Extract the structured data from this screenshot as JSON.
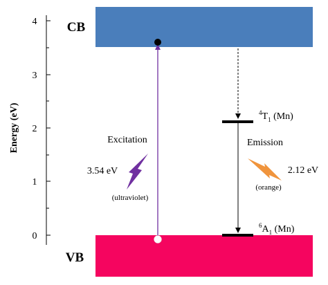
{
  "axis": {
    "ylabel": "Energy (eV)",
    "ticks": [
      "0",
      "1",
      "2",
      "3",
      "4"
    ],
    "ylim": [
      0,
      4.1
    ]
  },
  "bands": {
    "cb": {
      "label": "CB",
      "color": "#4a7ebb",
      "bottom_eV": 3.54
    },
    "vb": {
      "label": "VB",
      "color": "#f5055f",
      "top_eV": 0.0
    }
  },
  "levels": {
    "t1": {
      "label": "4T1 (Mn)",
      "sup": "4",
      "main": "T",
      "sub": "1",
      "rest": " (Mn)",
      "energy_eV": 2.12
    },
    "a1": {
      "label": "6A1 (Mn)",
      "sup": "6",
      "main": "A",
      "sub": "1",
      "rest": " (Mn)",
      "energy_eV": 0.0
    }
  },
  "excitation": {
    "title": "Excitation",
    "energy": "3.54 eV",
    "type": "(ultraviolet)",
    "color": "#7030a0"
  },
  "emission": {
    "title": "Emission",
    "energy": "2.12 eV",
    "type": "(orange)",
    "color": "#f0943c"
  }
}
